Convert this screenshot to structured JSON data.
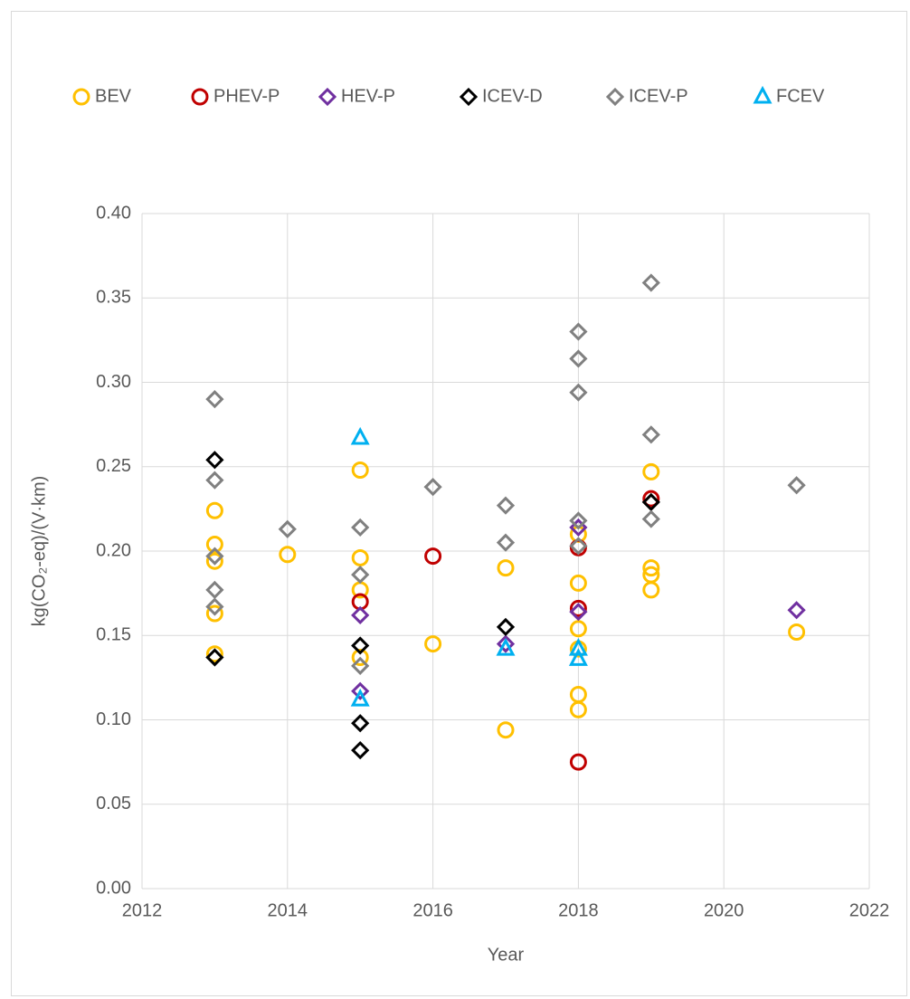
{
  "chart_data": {
    "type": "scatter",
    "xlabel": "Year",
    "ylabel": "kg(CO₂-eq)/(V·km)",
    "xlim": [
      2012,
      2022
    ],
    "xticks": [
      2012,
      2014,
      2016,
      2018,
      2020,
      2022
    ],
    "ylim": [
      0,
      0.4
    ],
    "yticks": [
      {
        "value": 0,
        "label": "0.00"
      },
      {
        "value": 0.05,
        "label": "0.05"
      },
      {
        "value": 0.1,
        "label": "0.10"
      },
      {
        "value": 0.15,
        "label": "0.15"
      },
      {
        "value": 0.2,
        "label": "0.20"
      },
      {
        "value": 0.25,
        "label": "0.25"
      },
      {
        "value": 0.3,
        "label": "0.30"
      },
      {
        "value": 0.35,
        "label": "0.35"
      },
      {
        "value": 0.4,
        "label": "0.40"
      }
    ],
    "grid": true,
    "legend": "top",
    "series": [
      {
        "name": "BEV",
        "color": "#ffc000",
        "marker": "circle",
        "x": [
          2013,
          2013,
          2013,
          2013,
          2013,
          2014,
          2015,
          2015,
          2015,
          2015,
          2016,
          2017,
          2017,
          2018,
          2018,
          2018,
          2018,
          2018,
          2018,
          2019,
          2019,
          2019,
          2019,
          2021
        ],
        "values": [
          0.224,
          0.204,
          0.194,
          0.163,
          0.139,
          0.198,
          0.248,
          0.196,
          0.177,
          0.137,
          0.145,
          0.19,
          0.094,
          0.21,
          0.181,
          0.154,
          0.142,
          0.115,
          0.106,
          0.247,
          0.19,
          0.186,
          0.177,
          0.152
        ]
      },
      {
        "name": "PHEV-P",
        "color": "#c00000",
        "marker": "circle",
        "x": [
          2015,
          2016,
          2018,
          2018,
          2018,
          2019
        ],
        "values": [
          0.17,
          0.197,
          0.202,
          0.166,
          0.075,
          0.231
        ]
      },
      {
        "name": "HEV-P",
        "color": "#7030a0",
        "marker": "diamond",
        "x": [
          2015,
          2015,
          2017,
          2018,
          2018,
          2021
        ],
        "values": [
          0.162,
          0.117,
          0.145,
          0.214,
          0.164,
          0.165
        ]
      },
      {
        "name": "ICEV-D",
        "color": "#000000",
        "marker": "diamond",
        "x": [
          2013,
          2013,
          2015,
          2015,
          2015,
          2017,
          2019
        ],
        "values": [
          0.254,
          0.137,
          0.144,
          0.098,
          0.082,
          0.155,
          0.229
        ]
      },
      {
        "name": "ICEV-P",
        "color": "#808080",
        "marker": "diamond",
        "x": [
          2013,
          2013,
          2013,
          2013,
          2013,
          2014,
          2015,
          2015,
          2015,
          2016,
          2017,
          2017,
          2018,
          2018,
          2018,
          2018,
          2018,
          2019,
          2019,
          2019,
          2021
        ],
        "values": [
          0.29,
          0.242,
          0.197,
          0.177,
          0.167,
          0.213,
          0.214,
          0.186,
          0.132,
          0.238,
          0.227,
          0.205,
          0.33,
          0.314,
          0.294,
          0.218,
          0.203,
          0.359,
          0.269,
          0.219,
          0.239
        ]
      },
      {
        "name": "FCEV",
        "color": "#00b0f0",
        "marker": "triangle",
        "x": [
          2015,
          2015,
          2017,
          2018,
          2018
        ],
        "values": [
          0.267,
          0.112,
          0.142,
          0.142,
          0.136
        ]
      }
    ]
  }
}
